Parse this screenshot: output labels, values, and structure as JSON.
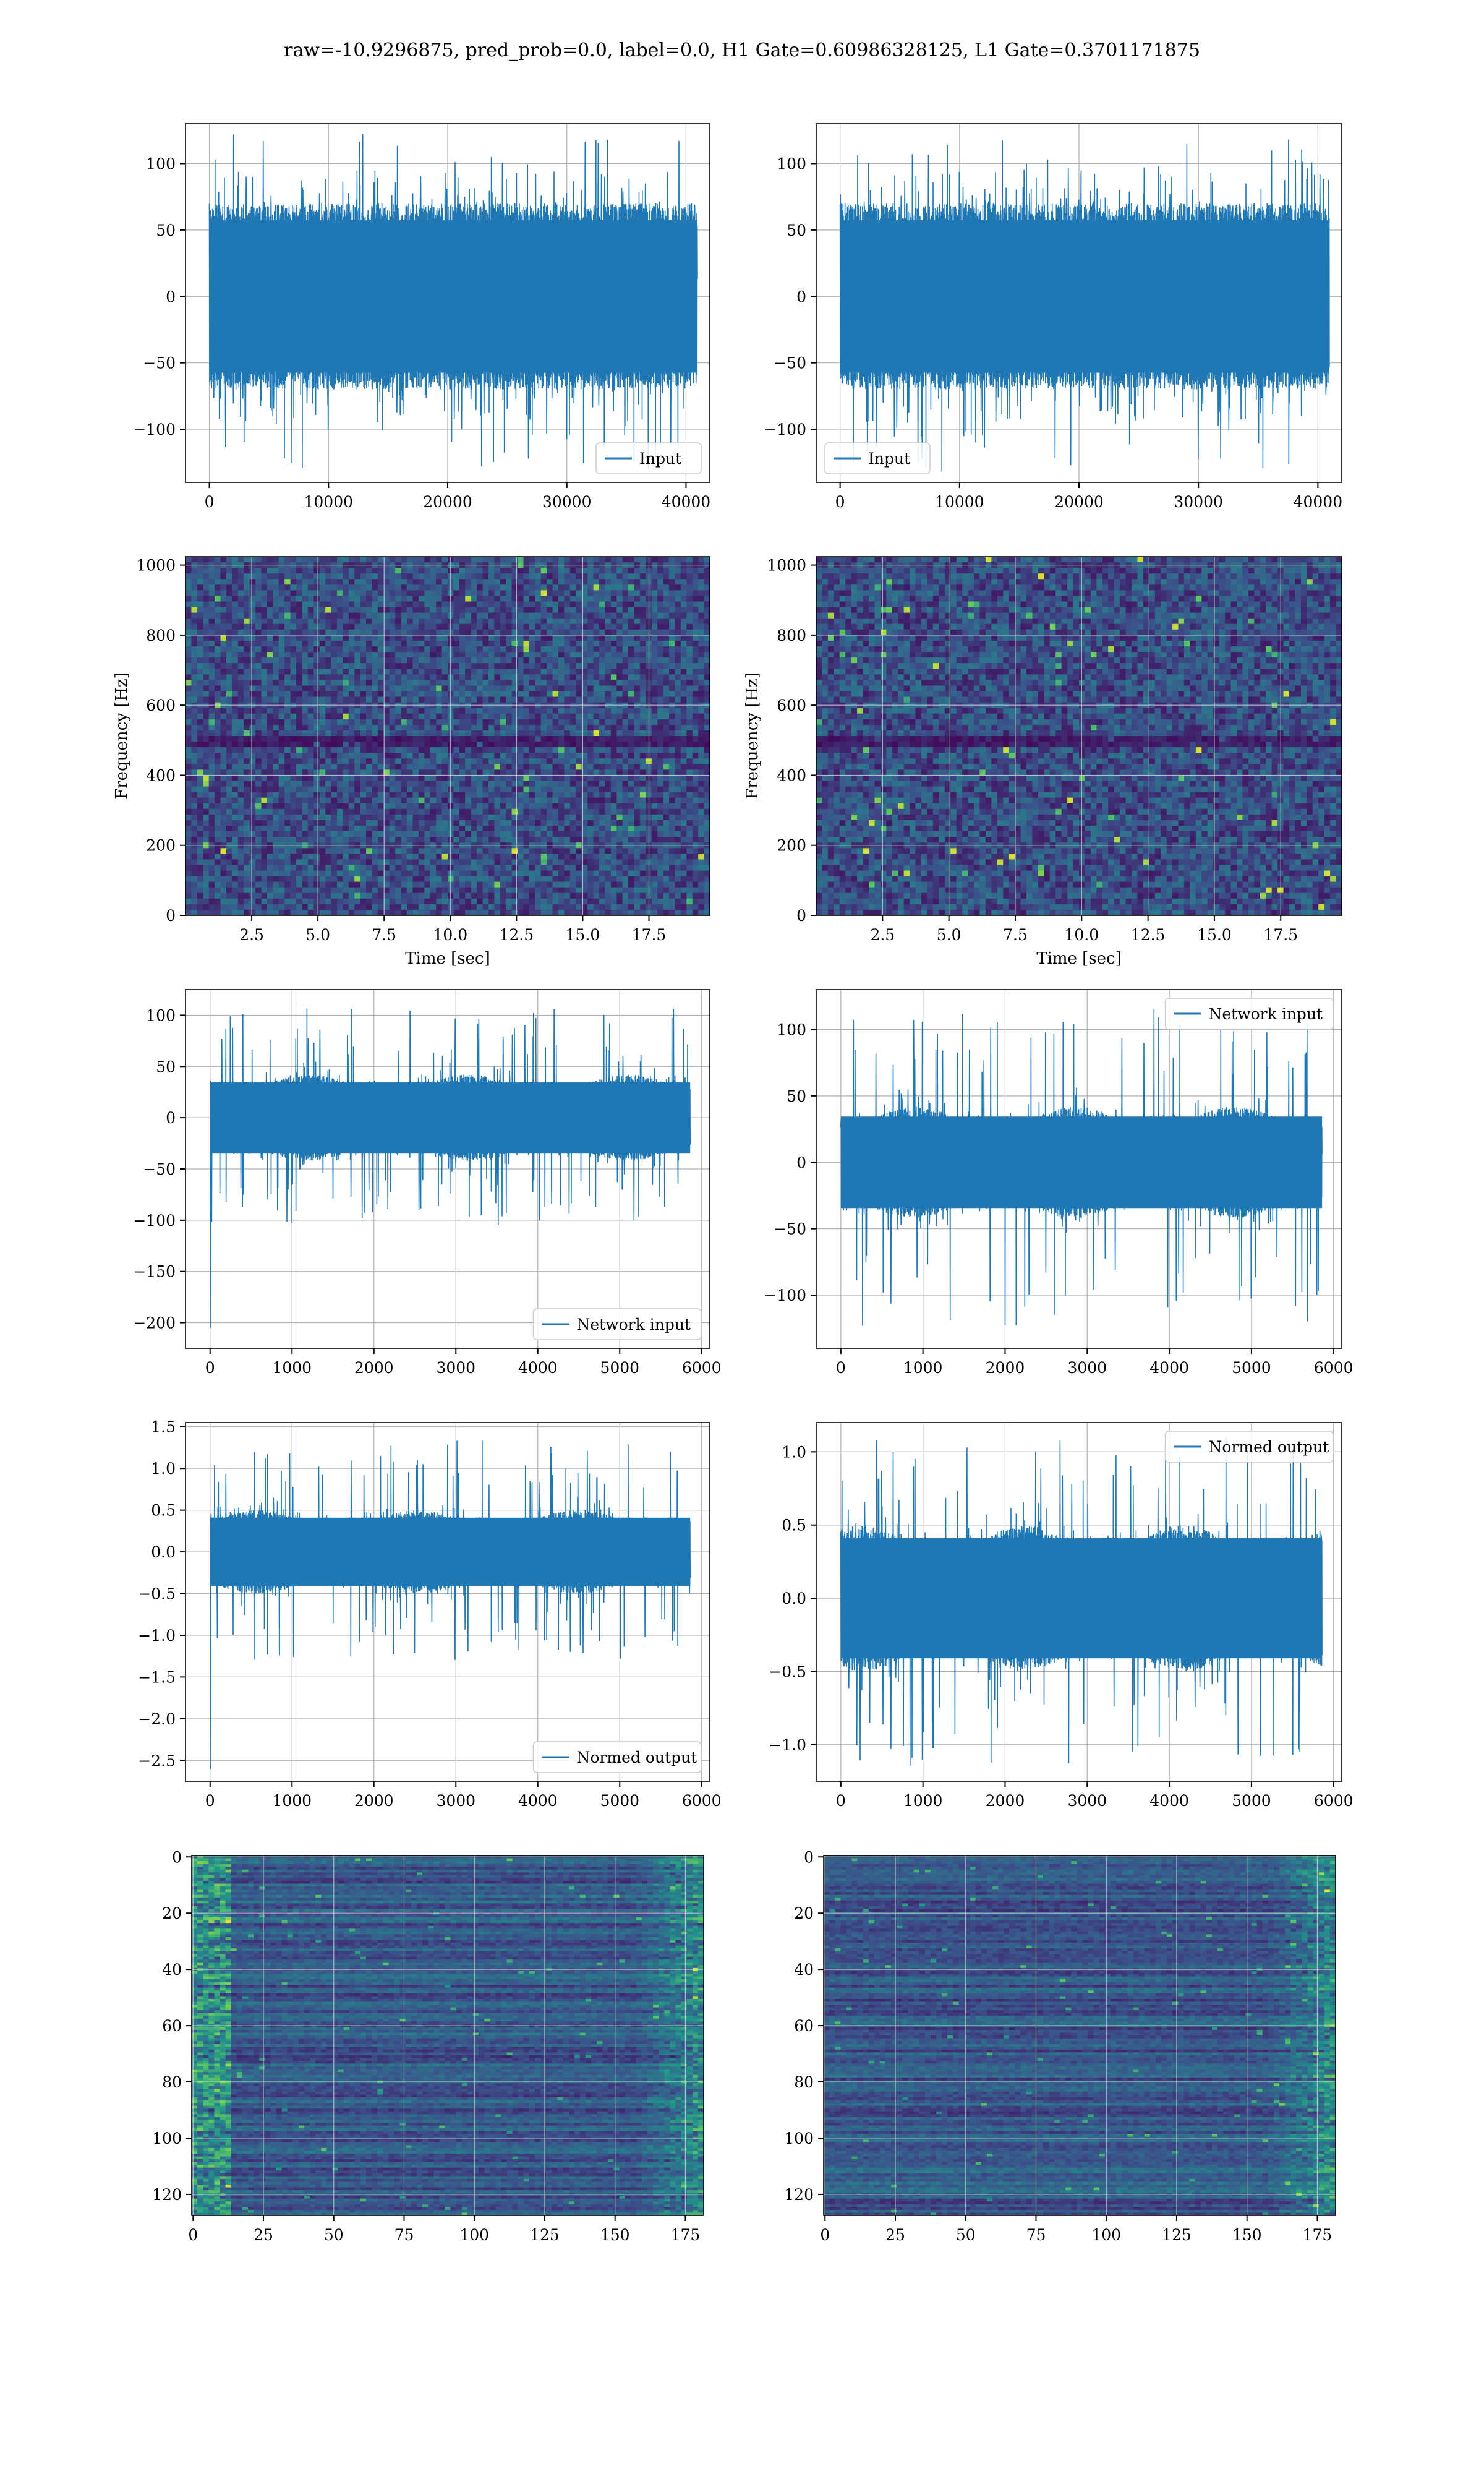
{
  "figure": {
    "title": "raw=-10.9296875, pred_prob=0.0, label=0.0, H1 Gate=0.60986328125, L1 Gate=0.3701171875"
  },
  "colors": {
    "series": "#1f77b4",
    "grid": "#b0b0b0",
    "viridis_dark": "#440154",
    "viridis_mid": "#21918c",
    "viridis_bright": "#fde725"
  },
  "chart_data": [
    {
      "id": "input-h1",
      "type": "line",
      "noise_kind": "flat",
      "xlim": [
        -2000,
        42000
      ],
      "ylim": [
        -140,
        130
      ],
      "xticks": [
        0,
        10000,
        20000,
        30000,
        40000
      ],
      "yticks": [
        -100,
        -50,
        0,
        50,
        100
      ],
      "tick_labels_x": [
        "0",
        "10000",
        "20000",
        "30000",
        "40000"
      ],
      "tick_labels_y": [
        "−100",
        "−50",
        "0",
        "50",
        "100"
      ],
      "x_range": [
        0,
        40960
      ],
      "envelope": [
        -70,
        70
      ],
      "peak_range": [
        -130,
        123
      ],
      "series": [
        {
          "name": "Input"
        }
      ],
      "legend": "lower right",
      "grid": true,
      "xlabel": "",
      "ylabel": ""
    },
    {
      "id": "input-l1",
      "type": "line",
      "noise_kind": "flat",
      "xlim": [
        -2000,
        42000
      ],
      "ylim": [
        -140,
        130
      ],
      "xticks": [
        0,
        10000,
        20000,
        30000,
        40000
      ],
      "yticks": [
        -100,
        -50,
        0,
        50,
        100
      ],
      "tick_labels_x": [
        "0",
        "10000",
        "20000",
        "30000",
        "40000"
      ],
      "tick_labels_y": [
        "−100",
        "−50",
        "0",
        "50",
        "100"
      ],
      "x_range": [
        0,
        40960
      ],
      "envelope": [
        -70,
        70
      ],
      "peak_range": [
        -133,
        120
      ],
      "series": [
        {
          "name": "Input"
        }
      ],
      "legend": "lower left",
      "grid": true,
      "xlabel": "",
      "ylabel": ""
    },
    {
      "id": "spectrogram-h1",
      "type": "heatmap",
      "colormap": "viridis",
      "xlim": [
        0,
        19.8
      ],
      "ylim": [
        0,
        1024
      ],
      "xticks": [
        2.5,
        5.0,
        7.5,
        10.0,
        12.5,
        15.0,
        17.5
      ],
      "yticks": [
        0,
        200,
        400,
        600,
        800,
        1000
      ],
      "tick_labels_x": [
        "2.5",
        "5.0",
        "7.5",
        "10.0",
        "12.5",
        "15.0",
        "17.5"
      ],
      "tick_labels_y": [
        "0",
        "200",
        "400",
        "600",
        "800",
        "1000"
      ],
      "xlabel": "Time [sec]",
      "ylabel": "Frequency [Hz]",
      "grid": true,
      "dark_band_hz": [
        480,
        520
      ]
    },
    {
      "id": "spectrogram-l1",
      "type": "heatmap",
      "colormap": "viridis",
      "xlim": [
        0,
        19.8
      ],
      "ylim": [
        0,
        1024
      ],
      "xticks": [
        2.5,
        5.0,
        7.5,
        10.0,
        12.5,
        15.0,
        17.5
      ],
      "yticks": [
        0,
        200,
        400,
        600,
        800,
        1000
      ],
      "tick_labels_x": [
        "2.5",
        "5.0",
        "7.5",
        "10.0",
        "12.5",
        "15.0",
        "17.5"
      ],
      "tick_labels_y": [
        "0",
        "200",
        "400",
        "600",
        "800",
        "1000"
      ],
      "xlabel": "Time [sec]",
      "ylabel": "Frequency [Hz]",
      "grid": true,
      "dark_band_hz": [
        480,
        520
      ]
    },
    {
      "id": "network-input-h1",
      "type": "line",
      "noise_kind": "wavy",
      "xlim": [
        -300,
        6100
      ],
      "ylim": [
        -225,
        125
      ],
      "xticks": [
        0,
        1000,
        2000,
        3000,
        4000,
        5000,
        6000
      ],
      "yticks": [
        -200,
        -150,
        -100,
        -50,
        0,
        50,
        100
      ],
      "tick_labels_x": [
        "0",
        "1000",
        "2000",
        "3000",
        "4000",
        "5000",
        "6000"
      ],
      "tick_labels_y": [
        "−200",
        "−150",
        "−100",
        "−50",
        "0",
        "50",
        "100"
      ],
      "x_range": [
        0,
        5860
      ],
      "envelope": [
        -42,
        42
      ],
      "peak_range": [
        -105,
        108
      ],
      "spike": {
        "x": 0,
        "y": -205
      },
      "series": [
        {
          "name": "Network input"
        }
      ],
      "legend": "lower right",
      "grid": true,
      "xlabel": "",
      "ylabel": ""
    },
    {
      "id": "network-input-l1",
      "type": "line",
      "noise_kind": "wavy",
      "xlim": [
        -300,
        6100
      ],
      "ylim": [
        -140,
        130
      ],
      "xticks": [
        0,
        1000,
        2000,
        3000,
        4000,
        5000,
        6000
      ],
      "yticks": [
        -100,
        -50,
        0,
        50,
        100
      ],
      "tick_labels_x": [
        "0",
        "1000",
        "2000",
        "3000",
        "4000",
        "5000",
        "6000"
      ],
      "tick_labels_y": [
        "−100",
        "−50",
        "0",
        "50",
        "100"
      ],
      "x_range": [
        0,
        5860
      ],
      "envelope": [
        -42,
        42
      ],
      "peak_range": [
        -123,
        120
      ],
      "series": [
        {
          "name": "Network input"
        }
      ],
      "legend": "upper right",
      "grid": true,
      "xlabel": "",
      "ylabel": ""
    },
    {
      "id": "normed-output-h1",
      "type": "line",
      "noise_kind": "wavy",
      "xlim": [
        -300,
        6100
      ],
      "ylim": [
        -2.75,
        1.55
      ],
      "xticks": [
        0,
        1000,
        2000,
        3000,
        4000,
        5000,
        6000
      ],
      "yticks": [
        -2.5,
        -2.0,
        -1.5,
        -1.0,
        -0.5,
        0.0,
        0.5,
        1.0,
        1.5
      ],
      "tick_labels_x": [
        "0",
        "1000",
        "2000",
        "3000",
        "4000",
        "5000",
        "6000"
      ],
      "tick_labels_y": [
        "−2.5",
        "−2.0",
        "−1.5",
        "−1.0",
        "−0.5",
        "0.0",
        "0.5",
        "1.0",
        "1.5"
      ],
      "x_range": [
        0,
        5860
      ],
      "envelope": [
        -0.5,
        0.5
      ],
      "peak_range": [
        -1.3,
        1.35
      ],
      "spike": {
        "x": 0,
        "y": -2.6
      },
      "series": [
        {
          "name": "Normed output"
        }
      ],
      "legend": "lower right",
      "grid": true,
      "xlabel": "",
      "ylabel": ""
    },
    {
      "id": "normed-output-l1",
      "type": "line",
      "noise_kind": "wavy",
      "xlim": [
        -300,
        6100
      ],
      "ylim": [
        -1.25,
        1.2
      ],
      "xticks": [
        0,
        1000,
        2000,
        3000,
        4000,
        5000,
        6000
      ],
      "yticks": [
        -1.0,
        -0.5,
        0.0,
        0.5,
        1.0
      ],
      "tick_labels_x": [
        "0",
        "1000",
        "2000",
        "3000",
        "4000",
        "5000",
        "6000"
      ],
      "tick_labels_y": [
        "−1.0",
        "−0.5",
        "0.0",
        "0.5",
        "1.0"
      ],
      "x_range": [
        0,
        5860
      ],
      "envelope": [
        -0.5,
        0.5
      ],
      "peak_range": [
        -1.17,
        1.1
      ],
      "series": [
        {
          "name": "Normed output"
        }
      ],
      "legend": "upper right",
      "grid": true,
      "xlabel": "",
      "ylabel": ""
    },
    {
      "id": "feature-map-h1",
      "type": "heatmap",
      "colormap": "viridis",
      "xlim": [
        -0.5,
        181.5
      ],
      "ylim": [
        127.5,
        -0.5
      ],
      "xticks": [
        0,
        25,
        50,
        75,
        100,
        125,
        150,
        175
      ],
      "yticks": [
        0,
        20,
        40,
        60,
        80,
        100,
        120
      ],
      "tick_labels_x": [
        "0",
        "25",
        "50",
        "75",
        "100",
        "125",
        "150",
        "175"
      ],
      "tick_labels_y": [
        "0",
        "20",
        "40",
        "60",
        "80",
        "100",
        "120"
      ],
      "grid": true,
      "rows": 128,
      "cols": 182,
      "bright_edges": "left and right",
      "xlabel": "",
      "ylabel": ""
    },
    {
      "id": "feature-map-l1",
      "type": "heatmap",
      "colormap": "viridis",
      "xlim": [
        -0.5,
        181.5
      ],
      "ylim": [
        127.5,
        -0.5
      ],
      "xticks": [
        0,
        25,
        50,
        75,
        100,
        125,
        150,
        175
      ],
      "yticks": [
        0,
        20,
        40,
        60,
        80,
        100,
        120
      ],
      "tick_labels_x": [
        "0",
        "25",
        "50",
        "75",
        "100",
        "125",
        "150",
        "175"
      ],
      "tick_labels_y": [
        "0",
        "20",
        "40",
        "60",
        "80",
        "100",
        "120"
      ],
      "grid": true,
      "rows": 128,
      "cols": 182,
      "bright_edges": "right",
      "xlabel": "",
      "ylabel": ""
    }
  ]
}
